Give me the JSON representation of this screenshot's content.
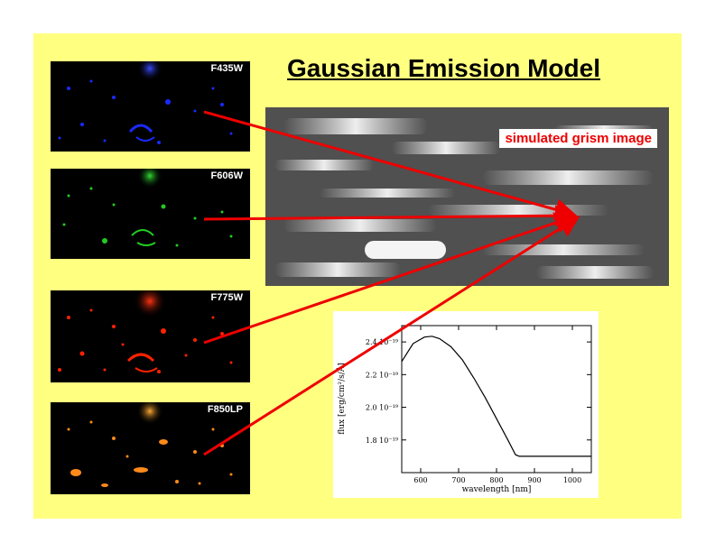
{
  "title": "Gaussian Emission Model",
  "filters": [
    {
      "name": "F435W",
      "color": "#1a2aff"
    },
    {
      "name": "F606W",
      "color": "#22cc22"
    },
    {
      "name": "F775W",
      "color": "#ff2200"
    },
    {
      "name": "F850LP",
      "color": "#ff8a1a"
    }
  ],
  "grism": {
    "label": "simulated grism image"
  },
  "arrow_color": "#ee0000",
  "chart_data": {
    "type": "line",
    "xlabel": "wavelength [nm]",
    "ylabel": "flux [erg/cm²/s/Å]",
    "xlim": [
      550,
      1050
    ],
    "ylim": [
      1.6,
      2.5
    ],
    "x_ticks": [
      600,
      700,
      800,
      900,
      1000
    ],
    "y_ticks": [
      1.8,
      2.0,
      2.2,
      2.4
    ],
    "y_tick_labels": [
      "1.8 10⁻¹⁹",
      "2.0 10⁻¹⁹",
      "2.2 10⁻¹⁹",
      "2.4 10⁻¹⁹"
    ],
    "x": [
      550,
      580,
      610,
      630,
      650,
      680,
      710,
      740,
      770,
      800,
      830,
      850,
      860,
      900,
      950,
      1000,
      1050
    ],
    "y": [
      2.28,
      2.39,
      2.43,
      2.435,
      2.42,
      2.37,
      2.29,
      2.18,
      2.06,
      1.93,
      1.8,
      1.71,
      1.7,
      1.7,
      1.7,
      1.7,
      1.7
    ]
  }
}
